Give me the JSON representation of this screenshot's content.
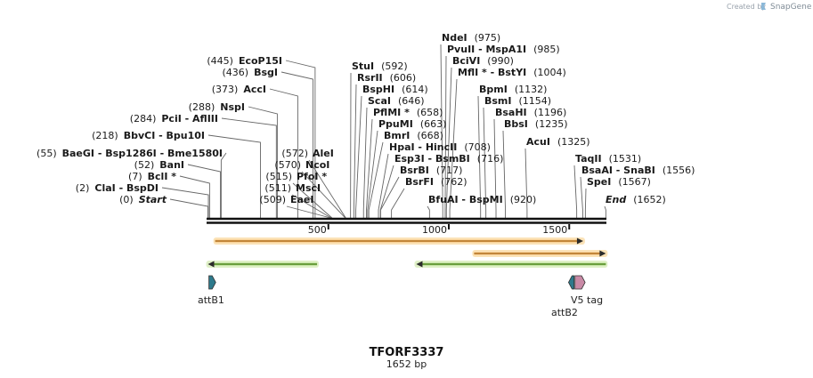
{
  "credit": {
    "label": "Created by",
    "brand": "SnapGene"
  },
  "sequence": {
    "name": "TFORF3337",
    "length_label": "1652 bp",
    "length": 1652
  },
  "colors": {
    "backbone": "#111111",
    "orange_fill": "#f3a23c",
    "orange_glow": "#fbe3b8",
    "green_fill": "#7cc242",
    "green_glow": "#dff0c7",
    "attb_fill": "#2e7a8c",
    "v5_fill": "#c98aa6",
    "leader": "#666666"
  },
  "ticks": [
    {
      "label": "500",
      "pos": 500
    },
    {
      "label": "1000",
      "pos": 1000
    },
    {
      "label": "1500",
      "pos": 1500
    }
  ],
  "sites": [
    {
      "pos_label": "(0)",
      "name": "Start",
      "pos": 0,
      "italic": true
    },
    {
      "pos_label": "(2)",
      "name": "ClaI  -  BspDI",
      "pos": 2
    },
    {
      "pos_label": "(7)",
      "name": "BclI *",
      "pos": 7
    },
    {
      "pos_label": "(52)",
      "name": "BanI",
      "pos": 52
    },
    {
      "pos_label": "(55)",
      "name": "BaeGI  -  Bsp1286I  -  Bme1580I",
      "pos": 55
    },
    {
      "pos_label": "(218)",
      "name": "BbvCI  -  Bpu10I",
      "pos": 218
    },
    {
      "pos_label": "(284)",
      "name": "PciI  -  AflIII",
      "pos": 284
    },
    {
      "pos_label": "(288)",
      "name": "NspI",
      "pos": 288
    },
    {
      "pos_label": "(373)",
      "name": "AccI",
      "pos": 373
    },
    {
      "pos_label": "(436)",
      "name": "BsgI",
      "pos": 436
    },
    {
      "pos_label": "(445)",
      "name": "EcoP15I",
      "pos": 445
    },
    {
      "pos_label": "(509)",
      "name": "EaeI",
      "pos": 509
    },
    {
      "pos_label": "(511)",
      "name": "MscI",
      "pos": 511
    },
    {
      "pos_label": "(515)",
      "name": "PfoI *",
      "pos": 515
    },
    {
      "pos_label": "(570)",
      "name": "NcoI",
      "pos": 570
    },
    {
      "pos_label": "(572)",
      "name": "AleI",
      "pos": 572
    },
    {
      "pos_label": "(592)",
      "name": "StuI",
      "pos": 592
    },
    {
      "pos_label": "(606)",
      "name": "RsrII",
      "pos": 606
    },
    {
      "pos_label": "(614)",
      "name": "BspHI",
      "pos": 614
    },
    {
      "pos_label": "(646)",
      "name": "ScaI",
      "pos": 646
    },
    {
      "pos_label": "(658)",
      "name": "PflMI *",
      "pos": 658
    },
    {
      "pos_label": "(663)",
      "name": "PpuMI",
      "pos": 663
    },
    {
      "pos_label": "(668)",
      "name": "BmrI",
      "pos": 668
    },
    {
      "pos_label": "(708)",
      "name": "HpaI  -  HincII",
      "pos": 708
    },
    {
      "pos_label": "(716)",
      "name": "Esp3I  -  BsmBI",
      "pos": 716
    },
    {
      "pos_label": "(717)",
      "name": "BsrBI",
      "pos": 717
    },
    {
      "pos_label": "(762)",
      "name": "BsrFI",
      "pos": 762
    },
    {
      "pos_label": "(975)",
      "name": "NdeI",
      "pos": 975
    },
    {
      "pos_label": "(985)",
      "name": "PvuII  -  MspA1I",
      "pos": 985
    },
    {
      "pos_label": "(990)",
      "name": "BciVI",
      "pos": 990
    },
    {
      "pos_label": "(1004)",
      "name": "MflI *  -  BstYI",
      "pos": 1004
    },
    {
      "pos_label": "(1132)",
      "name": "BpmI",
      "pos": 1132
    },
    {
      "pos_label": "(1154)",
      "name": "BsmI",
      "pos": 1154
    },
    {
      "pos_label": "(1196)",
      "name": "BsaHI",
      "pos": 1196
    },
    {
      "pos_label": "(1235)",
      "name": "BbsI",
      "pos": 1235
    },
    {
      "pos_label": "(920)",
      "name": "BfuAI  -  BspMI",
      "pos": 920
    },
    {
      "pos_label": "(1325)",
      "name": "AcuI",
      "pos": 1325
    },
    {
      "pos_label": "(1531)",
      "name": "TaqII",
      "pos": 1531
    },
    {
      "pos_label": "(1556)",
      "name": "BsaAI  -  SnaBI",
      "pos": 1556
    },
    {
      "pos_label": "(1567)",
      "name": "SpeI",
      "pos": 1567
    },
    {
      "pos_label": "(1652)",
      "name": "End",
      "pos": 1652,
      "italic": true
    }
  ],
  "orfs": [
    {
      "start": 30,
      "end": 1558,
      "direction": "forward",
      "color": "orange"
    },
    {
      "start": 1105,
      "end": 1652,
      "direction": "forward",
      "color": "orange"
    },
    {
      "start": 0,
      "end": 453,
      "direction": "reverse",
      "color": "green"
    },
    {
      "start": 865,
      "end": 1652,
      "direction": "reverse",
      "color": "green"
    }
  ],
  "features": [
    {
      "name": "attB1",
      "start": 4,
      "end": 25,
      "kind": "attb"
    },
    {
      "name": "attB2",
      "start": 1497,
      "end": 1520,
      "kind": "attb"
    },
    {
      "name": "V5 tag",
      "start": 1524,
      "end": 1566,
      "kind": "v5"
    }
  ]
}
